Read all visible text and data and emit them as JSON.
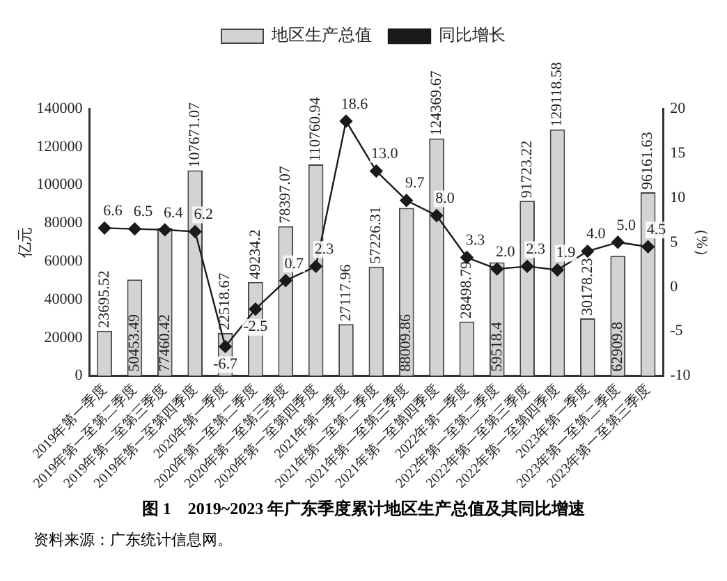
{
  "chart_data": {
    "type": "bar",
    "title": "图 1　2019~2023 年广东季度累计地区生产总值及其同比增速",
    "ylabel": "亿元",
    "y2label": "（%）",
    "categories": [
      "2019年第一季度",
      "2019年第一至第二季度",
      "2019年第一至第三季度",
      "2019年第一至第四季度",
      "2020年第一季度",
      "2020年第一至第二季度",
      "2020年第一至第三季度",
      "2020年第一至第四季度",
      "2021年第一季度",
      "2021年第一至第二季度",
      "2021年第一至第三季度",
      "2021年第一至第四季度",
      "2022年第一季度",
      "2022年第一至第二季度",
      "2022年第一至第三季度",
      "2022年第一至第四季度",
      "2023年第一季度",
      "2023年第一至第二季度",
      "2023年第一至第三季度"
    ],
    "series": [
      {
        "name": "地区生产总值",
        "color": "#d3d3d3",
        "values": [
          23695.52,
          50453.49,
          77460.42,
          107671.07,
          22518.67,
          49234.2,
          78397.07,
          110760.94,
          27117.96,
          57226.31,
          88009.86,
          124369.67,
          28498.79,
          59518.4,
          91723.22,
          129118.58,
          30178.23,
          62909.8,
          96161.63
        ],
        "value_labels": [
          "23695.52",
          "50453.49",
          "77460.42",
          "107671.07",
          "22518.67",
          "49234.2",
          "78397.07",
          "110760.94",
          "27117.96",
          "57226.31",
          "88009.86",
          "124369.67",
          "28498.79",
          "59518.4",
          "91723.22",
          "129118.58",
          "30178.23",
          "62909.8",
          "96161.63"
        ]
      },
      {
        "name": "同比增长",
        "type": "line",
        "axis": "y2",
        "color": "#1a1a1a",
        "marker": "diamond",
        "values": [
          6.6,
          6.5,
          6.4,
          6.2,
          -6.7,
          -2.5,
          0.7,
          2.3,
          18.6,
          13.0,
          9.7,
          8.0,
          3.3,
          2.0,
          2.3,
          1.9,
          4.0,
          5.0,
          4.5
        ],
        "value_labels": [
          "6.6",
          "6.5",
          "6.4",
          "6.2",
          "-6.7",
          "-2.5",
          "0.7",
          "2.3",
          "18.6",
          "13.0",
          "9.7",
          "8.0",
          "3.3",
          "2.0",
          "2.3",
          "1.9",
          "4.0",
          "5.0",
          "4.5"
        ]
      }
    ],
    "ylim": [
      0,
      140000
    ],
    "yticks": [
      0,
      20000,
      40000,
      60000,
      80000,
      100000,
      120000,
      140000
    ],
    "y2lim": [
      -10,
      20
    ],
    "y2ticks": [
      -10,
      -5,
      0,
      5,
      10,
      15,
      20
    ],
    "grid": false,
    "legend": "top",
    "annotations": [
      "资料来源：广东统计信息网。"
    ]
  }
}
